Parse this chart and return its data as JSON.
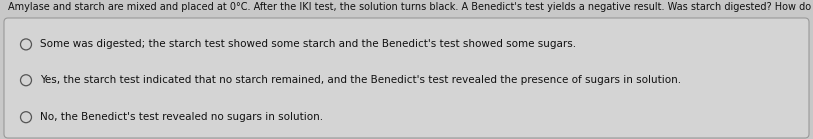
{
  "question": "Amylase and starch are mixed and placed at 0°C. After the IKI test, the solution turns black. A Benedict's test yields a negative result. Was starch digested? How do you know?",
  "options": [
    "Some was digested; the starch test showed some starch and the Benedict's test showed some sugars.",
    "Yes, the starch test indicated that no starch remained, and the Benedict's test revealed the presence of sugars in solution.",
    "No, the Benedict's test revealed no sugars in solution."
  ],
  "top_bg_color": "#c8c8c8",
  "box_bg_color": "#d4d4d4",
  "box_edge_color": "#999999",
  "question_color": "#111111",
  "option_color": "#111111",
  "fig_width": 8.13,
  "fig_height": 1.39,
  "dpi": 100,
  "question_fontsize": 7.0,
  "option_fontsize": 7.5
}
